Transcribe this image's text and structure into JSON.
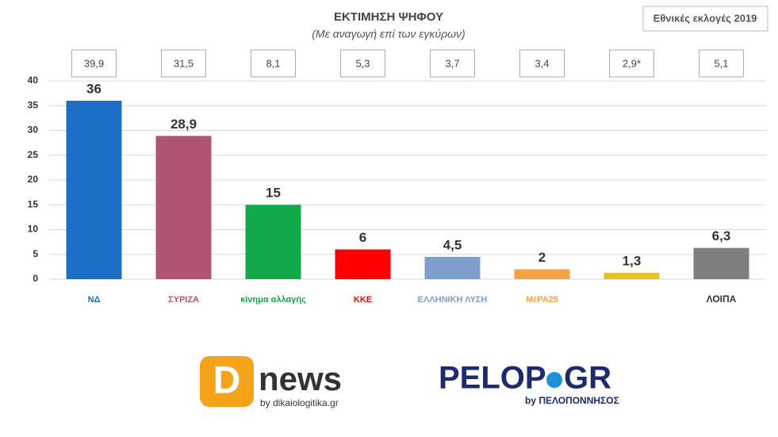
{
  "chart_data": {
    "type": "bar",
    "title": "ΕΚΤΙΜΗΣΗ ΨΗΦΟΥ",
    "subtitle": "(Με αναγωγή επί των εγκύρων)",
    "note": "Εθνικές εκλογές 2019",
    "categories": [
      "ΝΔ",
      "ΣΥΡΙΖΑ",
      "κίνημα αλλαγής",
      "ΚΚΕ",
      "ΕΛΛΗΝΙΚΗ ΛΥΣΗ",
      "ΜέΡΑ25",
      null,
      "ΛΟΙΠΑ"
    ],
    "values": [
      36,
      28.9,
      15,
      6,
      4.5,
      2,
      1.3,
      6.3
    ],
    "value_labels": [
      "36",
      "28,9",
      "15",
      "6",
      "4,5",
      "2",
      "1,3",
      "6,3"
    ],
    "colors": [
      "#1c6fc4",
      "#b05474",
      "#12a94b",
      "#ff0000",
      "#7f9fca",
      "#f2a145",
      "#e6c22a",
      "#7f7f7f"
    ],
    "reference": {
      "values": [
        39.9,
        31.5,
        8.1,
        5.3,
        3.7,
        3.4,
        2.9,
        5.1
      ],
      "value_labels": [
        "39,9",
        "31,5",
        "8,1",
        "5,3",
        "3,7",
        "3,4",
        "2,9*",
        "5,1"
      ]
    },
    "ylim": [
      0,
      40
    ],
    "yticks": [
      0,
      5,
      10,
      15,
      20,
      25,
      30,
      35,
      40
    ],
    "grid": true
  },
  "logos": {
    "dnews_letter": "D",
    "dnews_name": "news",
    "dnews_by": "by dikaiologitika.gr",
    "pelop_left": "PELOP",
    "pelop_right": "GR",
    "pelop_by": "by ΠΕΛΟΠΟΝΝΗΣΟΣ"
  }
}
